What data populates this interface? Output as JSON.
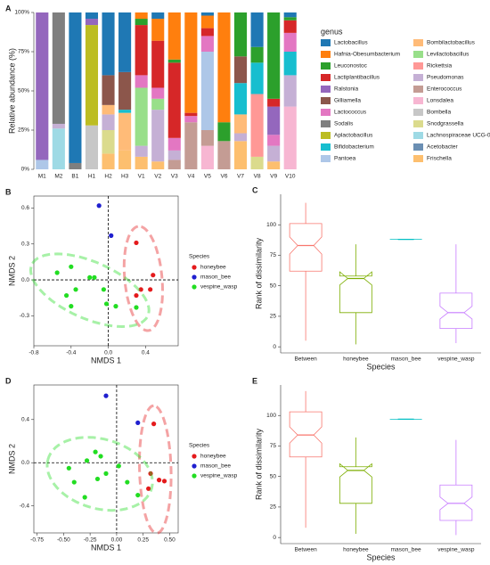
{
  "chart_data": [
    {
      "type": "stacked_bar",
      "panel": "A",
      "ylabel": "Relative abundance (%)",
      "legend_title": "genus",
      "categories": [
        "M1",
        "M2",
        "B1",
        "H1",
        "H2",
        "H3",
        "V1",
        "V2",
        "V3",
        "V4",
        "V5",
        "V6",
        "V7",
        "V8",
        "V9",
        "V10"
      ],
      "ylim": [
        0,
        100
      ],
      "yticks": [
        {
          "value": 0,
          "label": "0%"
        },
        {
          "value": 25,
          "label": "25%"
        },
        {
          "value": 50,
          "label": "50%"
        },
        {
          "value": 75,
          "label": "75%"
        },
        {
          "value": 100,
          "label": "100%"
        }
      ],
      "series": [
        {
          "name": "Lactobacillus",
          "color": "#1f78b4",
          "values": [
            0,
            0,
            96,
            4,
            40,
            38,
            0,
            4,
            0,
            0,
            2,
            0,
            0,
            22,
            0,
            3
          ]
        },
        {
          "name": "Hafnia-Obesumbacterium",
          "color": "#ff7f0e",
          "values": [
            0,
            0,
            0,
            0,
            0,
            0,
            4,
            14,
            30,
            64,
            8,
            70,
            0,
            0,
            0,
            0
          ]
        },
        {
          "name": "Leuconostoc",
          "color": "#2ca02c",
          "values": [
            0,
            0,
            0,
            0,
            0,
            0,
            4,
            0,
            2,
            0,
            0,
            12,
            28,
            10,
            55,
            2
          ]
        },
        {
          "name": "Lactiplantibacillus",
          "color": "#d62728",
          "values": [
            0,
            0,
            0,
            0,
            0,
            0,
            32,
            30,
            48,
            2,
            5,
            0,
            0,
            0,
            5,
            8
          ]
        },
        {
          "name": "Ralstonia",
          "color": "#9467bd",
          "values": [
            94,
            0,
            0,
            4,
            0,
            0,
            0,
            0,
            0,
            0,
            0,
            0,
            0,
            0,
            18,
            0
          ]
        },
        {
          "name": "Gilliamella",
          "color": "#8c564b",
          "values": [
            0,
            0,
            0,
            0,
            19,
            24,
            0,
            0,
            0,
            0,
            0,
            0,
            17,
            0,
            0,
            0
          ]
        },
        {
          "name": "Lactococcus",
          "color": "#e377c2",
          "values": [
            0,
            0,
            0,
            0,
            0,
            0,
            8,
            7,
            8,
            4,
            10,
            0,
            0,
            0,
            7,
            12
          ]
        },
        {
          "name": "Sodalis",
          "color": "#7f7f7f",
          "values": [
            0,
            71,
            4,
            0,
            0,
            0,
            0,
            0,
            0,
            0,
            0,
            0,
            0,
            0,
            0,
            0
          ]
        },
        {
          "name": "Aplactobacillus",
          "color": "#bcbd22",
          "values": [
            0,
            0,
            0,
            64,
            0,
            0,
            0,
            0,
            0,
            0,
            0,
            0,
            0,
            0,
            0,
            0
          ]
        },
        {
          "name": "Bifidobacterium",
          "color": "#17becf",
          "values": [
            0,
            0,
            0,
            0,
            0,
            2,
            0,
            0,
            0,
            0,
            0,
            0,
            20,
            20,
            0,
            15
          ]
        },
        {
          "name": "Pantoea",
          "color": "#aec7e8",
          "values": [
            6,
            0,
            0,
            0,
            0,
            0,
            0,
            0,
            0,
            0,
            50,
            0,
            0,
            0,
            0,
            0
          ]
        },
        {
          "name": "Bombilactobacillus",
          "color": "#ffbb78",
          "values": [
            0,
            0,
            0,
            0,
            6,
            24,
            0,
            0,
            0,
            0,
            0,
            0,
            12,
            0,
            0,
            0
          ]
        },
        {
          "name": "Levilactobacillus",
          "color": "#98df8a",
          "values": [
            0,
            0,
            0,
            0,
            0,
            0,
            37,
            7,
            0,
            0,
            0,
            0,
            0,
            0,
            0,
            0
          ]
        },
        {
          "name": "Rickettsia",
          "color": "#ff9896",
          "values": [
            0,
            0,
            0,
            0,
            0,
            0,
            0,
            0,
            0,
            0,
            0,
            0,
            0,
            40,
            0,
            0
          ]
        },
        {
          "name": "Pseudomonas",
          "color": "#c5b0d5",
          "values": [
            0,
            3,
            0,
            0,
            10,
            0,
            7,
            33,
            6,
            0,
            0,
            0,
            5,
            0,
            10,
            20
          ]
        },
        {
          "name": "Enterococcus",
          "color": "#c49c94",
          "values": [
            0,
            0,
            0,
            0,
            0,
            0,
            0,
            0,
            6,
            30,
            10,
            18,
            0,
            0,
            0,
            0
          ]
        },
        {
          "name": "Lonsdalea",
          "color": "#f7b6d2",
          "values": [
            0,
            0,
            0,
            0,
            0,
            0,
            0,
            0,
            0,
            0,
            15,
            0,
            0,
            0,
            0,
            40
          ]
        },
        {
          "name": "Bombella",
          "color": "#c7c7c7",
          "values": [
            0,
            0,
            0,
            28,
            0,
            0,
            0,
            0,
            0,
            0,
            0,
            0,
            0,
            0,
            0,
            0
          ]
        },
        {
          "name": "Snodgrassella",
          "color": "#dbdb8d",
          "values": [
            0,
            0,
            0,
            0,
            15,
            0,
            0,
            0,
            0,
            0,
            0,
            0,
            0,
            8,
            0,
            0
          ]
        },
        {
          "name": "Lachnospiraceae UCG-010",
          "color": "#9edae5",
          "values": [
            0,
            26,
            0,
            0,
            0,
            0,
            0,
            0,
            0,
            0,
            0,
            0,
            0,
            0,
            0,
            0
          ]
        },
        {
          "name": "Acetobacter",
          "color": "#6b8fb3",
          "values": [
            0,
            0,
            0,
            0,
            0,
            0,
            0,
            0,
            0,
            0,
            0,
            0,
            0,
            0,
            0,
            0
          ]
        },
        {
          "name": "Frischella",
          "color": "#fdbf6f",
          "values": [
            0,
            0,
            0,
            0,
            10,
            12,
            8,
            5,
            0,
            0,
            0,
            0,
            18,
            0,
            5,
            0
          ]
        }
      ]
    },
    {
      "type": "scatter",
      "panel": "B",
      "xlabel": "NMDS 1",
      "ylabel": "NMDS 2",
      "legend_title": "Species",
      "xlim": [
        -0.8,
        0.75
      ],
      "ylim": [
        -0.55,
        0.7
      ],
      "xticks": [
        -0.8,
        -0.4,
        {
          "value": 0,
          "label": "0.0"
        },
        0.4
      ],
      "yticks": [
        -0.3,
        {
          "value": 0,
          "label": "0.0"
        },
        0.3,
        0.6
      ],
      "series": [
        {
          "name": "honeybee",
          "color": "#e41a1c",
          "x": [
            0.3,
            0.48,
            0.35,
            0.45,
            0.3
          ],
          "y": [
            0.31,
            0.04,
            -0.08,
            -0.08,
            -0.13
          ]
        },
        {
          "name": "mason_bee",
          "color": "#1f1fcf",
          "x": [
            -0.1,
            0.03
          ],
          "y": [
            0.62,
            0.37
          ]
        },
        {
          "name": "vespine_wasp",
          "color": "#22dd22",
          "x": [
            -0.55,
            -0.4,
            -0.2,
            -0.15,
            -0.35,
            -0.05,
            -0.45,
            -0.02,
            0.08,
            -0.4,
            0.3
          ],
          "y": [
            0.06,
            0.11,
            0.02,
            0.02,
            -0.08,
            -0.08,
            -0.13,
            -0.2,
            -0.22,
            -0.22,
            -0.23
          ]
        }
      ]
    },
    {
      "type": "box",
      "panel": "C",
      "xlabel": "Species",
      "ylabel": "Rank of dissimilarity",
      "categories": [
        "Between",
        "honeybee",
        "mason_bee",
        "vespine_wasp"
      ],
      "colors": [
        "#f8766d",
        "#7cae00",
        "#00bfc4",
        "#c77cff"
      ],
      "min": [
        5,
        2,
        88,
        3
      ],
      "q1": [
        62,
        28,
        88,
        15
      ],
      "median": [
        83,
        56,
        88,
        28
      ],
      "q3": [
        101,
        58,
        88,
        44
      ],
      "max": [
        118,
        84,
        88,
        84
      ],
      "ylim": [
        -5,
        125
      ],
      "yticks": [
        0,
        25,
        50,
        75,
        100
      ]
    },
    {
      "type": "scatter",
      "panel": "D",
      "xlabel": "NMDS 1",
      "ylabel": "NMDS 2",
      "legend_title": "Species",
      "xlim": [
        -0.78,
        0.58
      ],
      "ylim": [
        -0.65,
        0.72
      ],
      "xticks": [
        -0.75,
        {
          "value": -0.5,
          "label": "-0.50"
        },
        -0.25,
        {
          "value": 0,
          "label": "0.00"
        },
        0.25,
        {
          "value": 0.5,
          "label": "0.50"
        }
      ],
      "yticks": [
        -0.4,
        {
          "value": 0,
          "label": "0.0"
        },
        0.4
      ],
      "series": [
        {
          "name": "honeybee",
          "color": "#e41a1c",
          "x": [
            0.35,
            0.32,
            0.4,
            0.45,
            0.3
          ],
          "y": [
            0.36,
            -0.1,
            -0.16,
            -0.17,
            -0.24
          ]
        },
        {
          "name": "mason_bee",
          "color": "#1f1fcf",
          "x": [
            -0.1,
            0.2
          ],
          "y": [
            0.62,
            0.37
          ]
        },
        {
          "name": "vespine_wasp",
          "color": "#22dd22",
          "x": [
            -0.45,
            -0.4,
            -0.28,
            -0.2,
            -0.15,
            -0.1,
            -0.18,
            0.02,
            -0.3,
            0.1,
            0.2
          ],
          "y": [
            -0.05,
            -0.18,
            0.02,
            0.1,
            0.06,
            -0.1,
            -0.15,
            -0.03,
            -0.32,
            -0.18,
            -0.3
          ]
        }
      ]
    },
    {
      "type": "box",
      "panel": "E",
      "xlabel": "Species",
      "ylabel": "Rank of dissimilarity",
      "categories": [
        "Between",
        "honeybee",
        "mason_bee",
        "vespine_wasp"
      ],
      "colors": [
        "#f8766d",
        "#7cae00",
        "#00bfc4",
        "#c77cff"
      ],
      "min": [
        8,
        3,
        97,
        2
      ],
      "q1": [
        66,
        28,
        97,
        14
      ],
      "median": [
        84,
        55,
        97,
        28
      ],
      "q3": [
        103,
        58,
        97,
        43
      ],
      "max": [
        120,
        82,
        97,
        80
      ],
      "ylim": [
        -5,
        125
      ],
      "yticks": [
        0,
        25,
        50,
        75,
        100
      ]
    }
  ]
}
